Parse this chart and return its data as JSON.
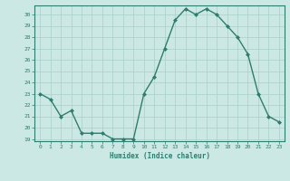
{
  "x": [
    0,
    1,
    2,
    3,
    4,
    5,
    6,
    7,
    8,
    9,
    10,
    11,
    12,
    13,
    14,
    15,
    16,
    17,
    18,
    19,
    20,
    21,
    22,
    23
  ],
  "y": [
    23,
    22.5,
    21,
    21.5,
    19.5,
    19.5,
    19.5,
    19,
    19,
    19,
    23,
    24.5,
    27,
    29.5,
    30.5,
    30,
    30.5,
    30,
    29,
    28,
    26.5,
    23,
    21,
    20.5
  ],
  "xlabel": "Humidex (Indice chaleur)",
  "ylim_min": 19,
  "ylim_max": 30.8,
  "xlim_min": -0.5,
  "xlim_max": 23.5,
  "yticks": [
    19,
    20,
    21,
    22,
    23,
    24,
    25,
    26,
    27,
    28,
    29,
    30
  ],
  "xticks": [
    0,
    1,
    2,
    3,
    4,
    5,
    6,
    7,
    8,
    9,
    10,
    11,
    12,
    13,
    14,
    15,
    16,
    17,
    18,
    19,
    20,
    21,
    22,
    23
  ],
  "line_color": "#2e7d6e",
  "bg_color": "#cce8e4",
  "grid_color": "#aacfca",
  "label_color": "#2e7d6e"
}
